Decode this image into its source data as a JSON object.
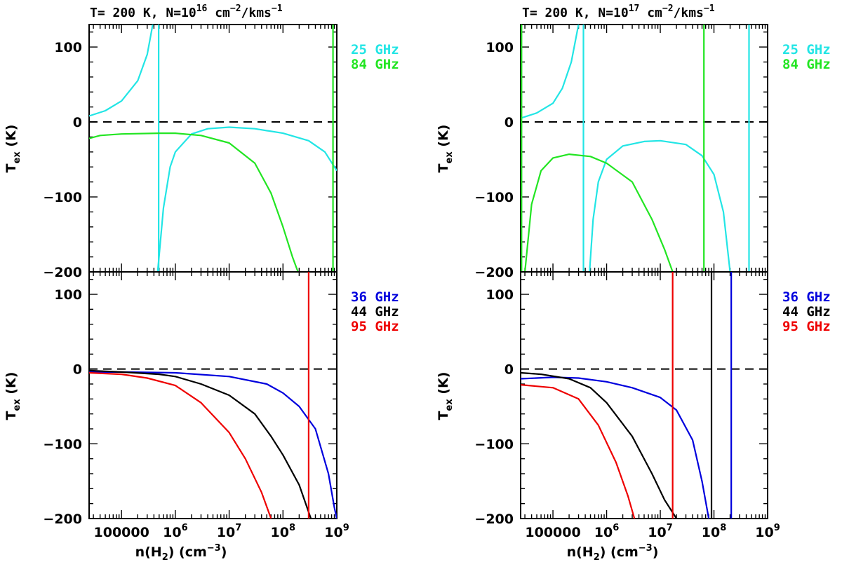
{
  "left_title": {
    "prefix": "T= 200 K, N=10",
    "exp": "16",
    "middle": " cm",
    "exp2": "−2",
    "suffix": "/kms",
    "exp3": "−1"
  },
  "right_title": {
    "prefix": "T= 200 K, N=10",
    "exp": "17",
    "middle": " cm",
    "exp2": "−2",
    "suffix": "/kms",
    "exp3": "−1"
  },
  "ylabel": {
    "main": "T",
    "sub": "ex",
    "unit": " (K)"
  },
  "xlabel": {
    "main": "n(H",
    "sub": "2",
    "mid": ") (cm",
    "sup": "−3",
    "end": ")"
  },
  "zero_line": {
    "color": "#000000",
    "dashed": true
  },
  "chart_data": [
    {
      "panel": "left-top",
      "type": "line",
      "xscale": "log",
      "xlim": [
        25000,
        1000000000
      ],
      "ylim": [
        -200,
        130
      ],
      "yticks": [
        100,
        0,
        -100,
        -200
      ],
      "yticklabels": [
        "100",
        "0",
        "−100",
        "−200"
      ],
      "series": [
        {
          "name": "25 GHz",
          "color": "#22e5e5",
          "segments": [
            [
              [
                25000,
                8
              ],
              [
                50000,
                15
              ],
              [
                100000,
                28
              ],
              [
                200000,
                55
              ],
              [
                300000,
                90
              ],
              [
                380000,
                130
              ]
            ],
            [
              [
                470000,
                -200
              ],
              [
                600000,
                -115
              ],
              [
                800000,
                -60
              ],
              [
                1000000,
                -40
              ],
              [
                2000000,
                -16
              ],
              [
                4000000,
                -9
              ],
              [
                10000000,
                -7
              ],
              [
                30000000,
                -9
              ],
              [
                100000000,
                -15
              ],
              [
                300000000,
                -25
              ],
              [
                600000000,
                -40
              ],
              [
                1000000000,
                -65
              ]
            ]
          ],
          "vlines": [
            490000
          ]
        },
        {
          "name": "84 GHz",
          "color": "#22e522",
          "segments": [
            [
              [
                25000,
                -22
              ],
              [
                40000,
                -18
              ],
              [
                100000,
                -16
              ],
              [
                500000,
                -15
              ],
              [
                1000000,
                -15
              ],
              [
                3000000,
                -18
              ],
              [
                10000000,
                -28
              ],
              [
                30000000,
                -55
              ],
              [
                60000000,
                -95
              ],
              [
                100000000,
                -140
              ],
              [
                150000000,
                -180
              ],
              [
                190000000,
                -200
              ]
            ]
          ],
          "vlines": [
            850000000
          ]
        }
      ]
    },
    {
      "panel": "left-bottom",
      "type": "line",
      "xscale": "log",
      "xlim": [
        25000,
        1000000000
      ],
      "ylim": [
        -200,
        130
      ],
      "xticks": [
        100000,
        1000000,
        10000000,
        100000000,
        1000000000
      ],
      "yticks": [
        100,
        0,
        -100,
        -200
      ],
      "yticklabels": [
        "100",
        "0",
        "−100",
        "−200"
      ],
      "series": [
        {
          "name": "36 GHz",
          "color": "#0000dd",
          "segments": [
            [
              [
                25000,
                -4
              ],
              [
                100000,
                -4
              ],
              [
                1000000,
                -5
              ],
              [
                10000000,
                -10
              ],
              [
                50000000,
                -20
              ],
              [
                100000000,
                -32
              ],
              [
                200000000,
                -50
              ],
              [
                400000000,
                -80
              ],
              [
                700000000,
                -140
              ],
              [
                900000000,
                -185
              ],
              [
                1000000000,
                -200
              ]
            ]
          ]
        },
        {
          "name": "44 GHz",
          "color": "#000000",
          "segments": [
            [
              [
                25000,
                -2
              ],
              [
                100000,
                -4
              ],
              [
                500000,
                -7
              ],
              [
                1000000,
                -10
              ],
              [
                3000000,
                -20
              ],
              [
                10000000,
                -35
              ],
              [
                30000000,
                -60
              ],
              [
                60000000,
                -90
              ],
              [
                100000000,
                -115
              ],
              [
                200000000,
                -155
              ],
              [
                330000000,
                -200
              ]
            ]
          ]
        },
        {
          "name": "95 GHz",
          "color": "#ee0000",
          "segments": [
            [
              [
                25000,
                -5
              ],
              [
                100000,
                -7
              ],
              [
                300000,
                -12
              ],
              [
                1000000,
                -22
              ],
              [
                3000000,
                -45
              ],
              [
                10000000,
                -85
              ],
              [
                20000000,
                -120
              ],
              [
                40000000,
                -165
              ],
              [
                60000000,
                -200
              ]
            ]
          ],
          "vlines": [
            300000000
          ]
        }
      ]
    },
    {
      "panel": "right-top",
      "type": "line",
      "xscale": "log",
      "xlim": [
        25000,
        1000000000
      ],
      "ylim": [
        -200,
        130
      ],
      "yticks": [
        100,
        0,
        -100,
        -200
      ],
      "yticklabels": [
        "100",
        "0",
        "−100",
        "−200"
      ],
      "series": [
        {
          "name": "25 GHz",
          "color": "#22e5e5",
          "segments": [
            [
              [
                25000,
                5
              ],
              [
                50000,
                12
              ],
              [
                100000,
                25
              ],
              [
                150000,
                45
              ],
              [
                220000,
                80
              ],
              [
                300000,
                130
              ]
            ],
            [
              [
                480000,
                -200
              ],
              [
                560000,
                -130
              ],
              [
                700000,
                -80
              ],
              [
                1000000,
                -50
              ],
              [
                2000000,
                -32
              ],
              [
                5000000,
                -26
              ],
              [
                10000000,
                -25
              ],
              [
                30000000,
                -30
              ],
              [
                60000000,
                -45
              ],
              [
                100000000,
                -70
              ],
              [
                150000000,
                -120
              ],
              [
                200000000,
                -200
              ]
            ]
          ],
          "vlines": [
            370000,
            450000000
          ]
        },
        {
          "name": "84 GHz",
          "color": "#22e522",
          "segments": [
            [
              [
                30000,
                -200
              ],
              [
                40000,
                -110
              ],
              [
                60000,
                -65
              ],
              [
                100000,
                -48
              ],
              [
                200000,
                -43
              ],
              [
                500000,
                -46
              ],
              [
                1000000,
                -55
              ],
              [
                3000000,
                -80
              ],
              [
                7000000,
                -130
              ],
              [
                12000000,
                -170
              ],
              [
                17000000,
                -200
              ]
            ]
          ],
          "vlines": [
            26000,
            65000000
          ]
        }
      ]
    },
    {
      "panel": "right-bottom",
      "type": "line",
      "xscale": "log",
      "xlim": [
        25000,
        1000000000
      ],
      "ylim": [
        -200,
        130
      ],
      "xticks": [
        100000,
        1000000,
        10000000,
        100000000,
        1000000000
      ],
      "yticks": [
        100,
        0,
        -100,
        -200
      ],
      "yticklabels": [
        "100",
        "0",
        "−100",
        "−200"
      ],
      "series": [
        {
          "name": "36 GHz",
          "color": "#0000dd",
          "segments": [
            [
              [
                25000,
                -13
              ],
              [
                100000,
                -11
              ],
              [
                300000,
                -12
              ],
              [
                1000000,
                -17
              ],
              [
                3000000,
                -25
              ],
              [
                10000000,
                -38
              ],
              [
                20000000,
                -55
              ],
              [
                40000000,
                -95
              ],
              [
                60000000,
                -150
              ],
              [
                80000000,
                -200
              ]
            ]
          ],
          "vlines": [
            210000000
          ]
        },
        {
          "name": "44 GHz",
          "color": "#000000",
          "segments": [
            [
              [
                25000,
                -5
              ],
              [
                60000,
                -7
              ],
              [
                200000,
                -13
              ],
              [
                500000,
                -25
              ],
              [
                1000000,
                -45
              ],
              [
                3000000,
                -90
              ],
              [
                7000000,
                -140
              ],
              [
                12000000,
                -175
              ],
              [
                20000000,
                -200
              ]
            ]
          ],
          "vlines": [
            90000000
          ]
        },
        {
          "name": "95 GHz",
          "color": "#ee0000",
          "segments": [
            [
              [
                25000,
                -21
              ],
              [
                100000,
                -25
              ],
              [
                300000,
                -40
              ],
              [
                700000,
                -75
              ],
              [
                1500000,
                -125
              ],
              [
                2500000,
                -170
              ],
              [
                3300000,
                -200
              ]
            ]
          ],
          "vlines": [
            17000000
          ]
        }
      ]
    }
  ]
}
